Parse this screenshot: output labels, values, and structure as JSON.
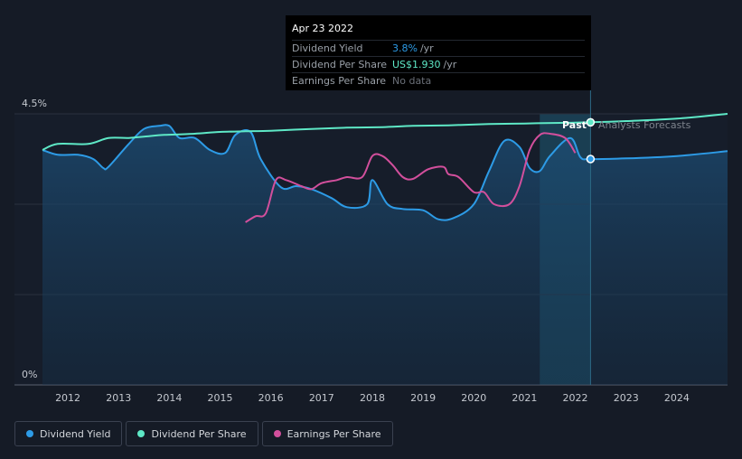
{
  "colors": {
    "yield": "#2d9be6",
    "dps": "#5ee8c6",
    "eps": "#d24f9c",
    "background": "#151b26"
  },
  "tooltip": {
    "date": "Apr 23 2022",
    "rows": [
      {
        "label": "Dividend Yield",
        "value": "3.8%",
        "unit": "/yr"
      },
      {
        "label": "Dividend Per Share",
        "value": "US$1.930",
        "unit": "/yr"
      },
      {
        "label": "Earnings Per Share",
        "value": "No data",
        "unit": ""
      }
    ]
  },
  "labels": {
    "past": "Past",
    "forecast": "Analysts Forecasts"
  },
  "legend": [
    {
      "label": "Dividend Yield",
      "color": "#2d9be6"
    },
    {
      "label": "Dividend Per Share",
      "color": "#5ee8c6"
    },
    {
      "label": "Earnings Per Share",
      "color": "#d24f9c"
    }
  ],
  "chart_data": {
    "type": "line",
    "xlim": [
      2011.5,
      2025.0
    ],
    "ylim": [
      0,
      4.5
    ],
    "y_tick_labels": [
      {
        "value": 4.5,
        "label": "4.5%"
      },
      {
        "value": 0,
        "label": "0%"
      }
    ],
    "x_ticks": [
      2012,
      2013,
      2014,
      2015,
      2016,
      2017,
      2018,
      2019,
      2020,
      2021,
      2022,
      2023,
      2024
    ],
    "forecast_start": 2022.3,
    "highlight_start": 2021.3,
    "series": [
      {
        "name": "Dividend Yield",
        "x": [
          2011.5,
          2011.8,
          2012.2,
          2012.5,
          2012.7,
          2012.8,
          2013.2,
          2013.5,
          2013.8,
          2014.0,
          2014.2,
          2014.5,
          2014.8,
          2015.1,
          2015.3,
          2015.6,
          2015.8,
          2016.2,
          2016.5,
          2016.8,
          2017.2,
          2017.5,
          2017.9,
          2018.0,
          2018.3,
          2018.6,
          2019.0,
          2019.3,
          2019.6,
          2020.0,
          2020.3,
          2020.6,
          2020.9,
          2021.1,
          2021.3,
          2021.5,
          2021.9,
          2022.1,
          2022.3,
          2023.0,
          2024.0,
          2025.0
        ],
        "y": [
          3.9,
          3.82,
          3.82,
          3.75,
          3.6,
          3.62,
          4.0,
          4.25,
          4.3,
          4.3,
          4.1,
          4.1,
          3.9,
          3.85,
          4.15,
          4.2,
          3.75,
          3.28,
          3.3,
          3.25,
          3.1,
          2.95,
          3.0,
          3.4,
          3.0,
          2.92,
          2.9,
          2.75,
          2.77,
          3.0,
          3.55,
          4.05,
          3.95,
          3.6,
          3.55,
          3.8,
          4.1,
          3.78,
          3.75,
          3.76,
          3.8,
          3.88
        ]
      },
      {
        "name": "Dividend Per Share",
        "x": [
          2011.5,
          2011.8,
          2012.4,
          2012.8,
          2013.2,
          2013.6,
          2013.9,
          2014.5,
          2015.0,
          2015.5,
          2016.0,
          2016.8,
          2017.5,
          2018.2,
          2018.8,
          2019.5,
          2020.3,
          2021.0,
          2021.7,
          2022.3,
          2023.0,
          2024.0,
          2025.0
        ],
        "y": [
          3.9,
          4.0,
          4.0,
          4.1,
          4.1,
          4.13,
          4.15,
          4.17,
          4.2,
          4.21,
          4.22,
          4.25,
          4.27,
          4.28,
          4.3,
          4.31,
          4.33,
          4.34,
          4.35,
          4.36,
          4.38,
          4.42,
          4.5
        ]
      },
      {
        "name": "Earnings Per Share",
        "x": [
          2015.5,
          2015.7,
          2015.9,
          2016.1,
          2016.3,
          2016.6,
          2016.8,
          2017.0,
          2017.3,
          2017.5,
          2017.8,
          2018.0,
          2018.2,
          2018.4,
          2018.6,
          2018.8,
          2019.1,
          2019.4,
          2019.5,
          2019.7,
          2020.0,
          2020.2,
          2020.4,
          2020.7,
          2020.9,
          2021.1,
          2021.3,
          2021.5,
          2021.8,
          2022.0
        ],
        "y": [
          2.7,
          2.8,
          2.85,
          3.4,
          3.4,
          3.3,
          3.25,
          3.35,
          3.4,
          3.45,
          3.45,
          3.8,
          3.8,
          3.65,
          3.45,
          3.42,
          3.58,
          3.62,
          3.5,
          3.45,
          3.2,
          3.2,
          3.0,
          3.0,
          3.3,
          3.9,
          4.15,
          4.17,
          4.1,
          3.85
        ]
      }
    ]
  }
}
